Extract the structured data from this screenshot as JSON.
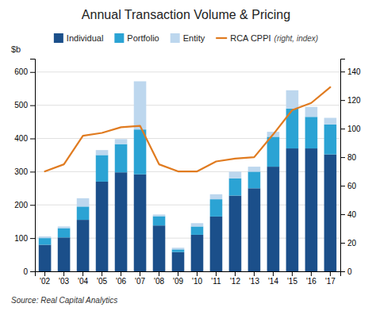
{
  "chart_data": {
    "type": "bar",
    "title": "Annual Transaction Volume & Pricing",
    "ylabel": "$b",
    "annotations": [
      "(right, index)",
      "Source: Real Capital Analytics"
    ],
    "categories": [
      "'02",
      "'03",
      "'04",
      "'05",
      "'06",
      "'07",
      "'08",
      "'09",
      "'10",
      "'11",
      "'12",
      "'13",
      "'14",
      "'15",
      "'16",
      "'17"
    ],
    "series": [
      {
        "name": "Individual",
        "type": "bar",
        "color": "#1B4F8A",
        "values": [
          80,
          102,
          155,
          270,
          298,
          292,
          138,
          58,
          110,
          165,
          228,
          250,
          315,
          370,
          370,
          352
        ]
      },
      {
        "name": "Portfolio",
        "type": "bar",
        "color": "#2BA3D4",
        "values": [
          20,
          28,
          40,
          80,
          85,
          135,
          28,
          8,
          25,
          52,
          52,
          50,
          90,
          120,
          95,
          90
        ]
      },
      {
        "name": "Entity",
        "type": "bar",
        "color": "#BDD7EE",
        "values": [
          5,
          5,
          25,
          15,
          15,
          145,
          5,
          5,
          10,
          15,
          20,
          15,
          15,
          55,
          30,
          20
        ]
      },
      {
        "name": "RCA CPPI",
        "type": "line",
        "axis": "y2",
        "color": "#E07B20",
        "values": [
          70,
          75,
          95,
          97,
          101,
          102,
          75,
          70,
          70,
          77,
          79,
          80,
          96,
          113,
          118,
          129
        ]
      }
    ],
    "stacked": true,
    "ylim": [
      0,
      640
    ],
    "yticks": [
      0,
      100,
      200,
      300,
      400,
      500,
      600
    ],
    "y2lim": [
      0,
      149
    ],
    "y2ticks": [
      0,
      20,
      40,
      60,
      80,
      100,
      120,
      140
    ],
    "grid": true,
    "legend": "top"
  }
}
